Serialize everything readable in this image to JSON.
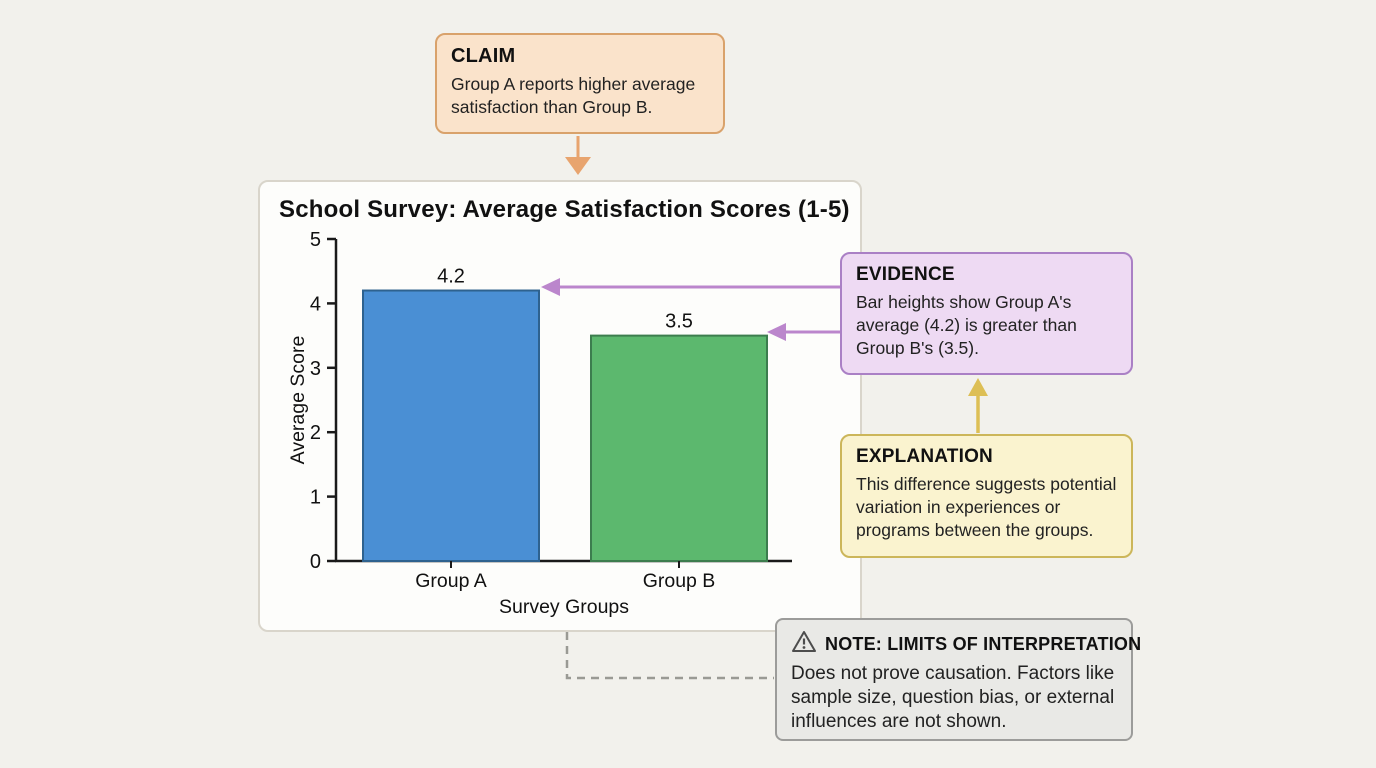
{
  "claim": {
    "title": "CLAIM",
    "body": "Group A reports higher average satisfaction than Group B."
  },
  "evidence": {
    "title": "EVIDENCE",
    "body": "Bar heights show Group A's average (4.2) is greater than Group B's (3.5)."
  },
  "explanation": {
    "title": "EXPLANATION",
    "body": "This difference suggests potential variation in experiences or programs between the groups."
  },
  "note": {
    "title": "NOTE: LIMITS OF INTERPRETATION",
    "body": "Does not prove causation. Factors like sample size, question bias, or external influences are not shown.",
    "icon": "warning-triangle-icon"
  },
  "chart_data": {
    "type": "bar",
    "title": "School Survey: Average Satisfaction Scores (1-5)",
    "categories": [
      "Group A",
      "Group B"
    ],
    "values": [
      4.2,
      3.5
    ],
    "data_labels": [
      "4.2",
      "3.5"
    ],
    "bar_colors": [
      "#4a8fd4",
      "#5cb86e"
    ],
    "bar_border_colors": [
      "#2e628f",
      "#3c7d4e"
    ],
    "xlabel": "Survey Groups",
    "ylabel": "Average Score",
    "ylim": [
      0,
      5
    ],
    "yticks": [
      0,
      1,
      2,
      3,
      4,
      5
    ],
    "grid": false,
    "legend": "none",
    "axis_color": "#1a1a1a",
    "label_color": "#111"
  },
  "connectors": {
    "claim_color": "#e8a46e",
    "evidence_color": "#bb86cc",
    "explanation_color": "#ddbf55",
    "note_dash_color": "#9a9a94"
  }
}
